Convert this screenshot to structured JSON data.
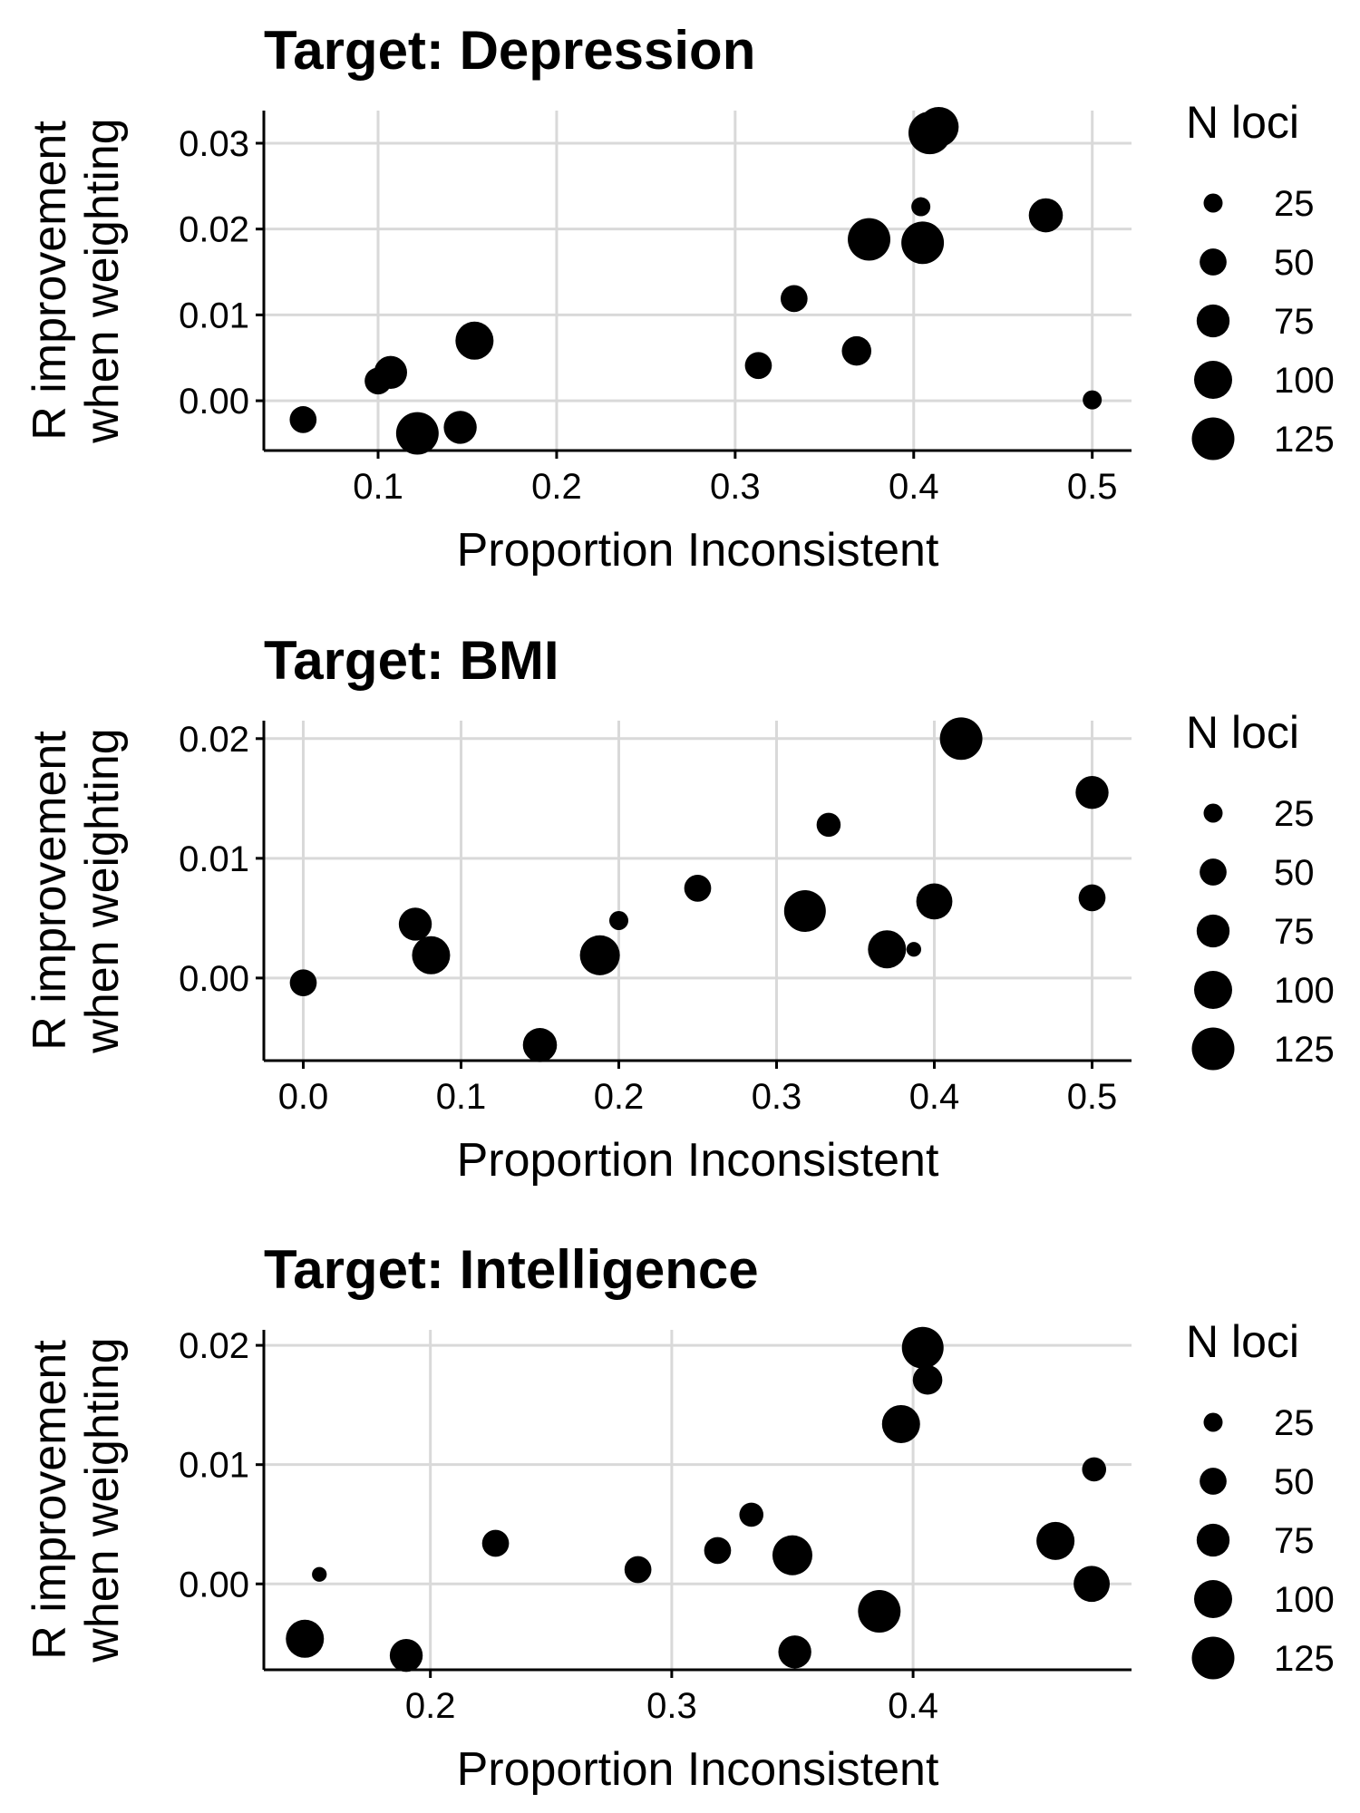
{
  "legend": {
    "title": "N loci",
    "sizes": [
      25,
      50,
      75,
      100,
      125
    ],
    "labels": [
      "25",
      "50",
      "75",
      "100",
      "125"
    ]
  },
  "chart_data": [
    {
      "type": "scatter",
      "title": "Target: Depression",
      "xlabel": "Proportion Inconsistent",
      "ylabel": [
        "R improvement",
        "when weighting"
      ],
      "xlim": [
        0.036,
        0.522
      ],
      "ylim": [
        -0.0058,
        0.0338
      ],
      "xticks": [
        0.1,
        0.2,
        0.3,
        0.4,
        0.5
      ],
      "xtick_labels": [
        "0.1",
        "0.2",
        "0.3",
        "0.4",
        "0.5"
      ],
      "yticks": [
        0.0,
        0.01,
        0.02,
        0.03
      ],
      "ytick_labels": [
        "0.00",
        "0.01",
        "0.02",
        "0.03"
      ],
      "grid": true,
      "legend_position": "right",
      "points": [
        {
          "x": 0.058,
          "y": -0.0022,
          "n": 50
        },
        {
          "x": 0.1,
          "y": 0.0023,
          "n": 50
        },
        {
          "x": 0.107,
          "y": 0.0033,
          "n": 75
        },
        {
          "x": 0.122,
          "y": -0.0038,
          "n": 125
        },
        {
          "x": 0.146,
          "y": -0.0031,
          "n": 75
        },
        {
          "x": 0.154,
          "y": 0.007,
          "n": 100
        },
        {
          "x": 0.313,
          "y": 0.0041,
          "n": 50
        },
        {
          "x": 0.333,
          "y": 0.0119,
          "n": 50
        },
        {
          "x": 0.368,
          "y": 0.0058,
          "n": 60
        },
        {
          "x": 0.375,
          "y": 0.0188,
          "n": 125
        },
        {
          "x": 0.404,
          "y": 0.0226,
          "n": 25
        },
        {
          "x": 0.405,
          "y": 0.0184,
          "n": 125
        },
        {
          "x": 0.409,
          "y": 0.0312,
          "n": 125
        },
        {
          "x": 0.414,
          "y": 0.0319,
          "n": 110
        },
        {
          "x": 0.474,
          "y": 0.0216,
          "n": 80
        },
        {
          "x": 0.5,
          "y": 0.0001,
          "n": 25
        }
      ]
    },
    {
      "type": "scatter",
      "title": "Target: BMI",
      "xlabel": "Proportion Inconsistent",
      "ylabel": [
        "R improvement",
        "when weighting"
      ],
      "xlim": [
        -0.025,
        0.525
      ],
      "ylim": [
        -0.0069,
        0.0215
      ],
      "xticks": [
        0.0,
        0.1,
        0.2,
        0.3,
        0.4,
        0.5
      ],
      "xtick_labels": [
        "0.0",
        "0.1",
        "0.2",
        "0.3",
        "0.4",
        "0.5"
      ],
      "yticks": [
        0.0,
        0.01,
        0.02
      ],
      "ytick_labels": [
        "0.00",
        "0.01",
        "0.02"
      ],
      "grid": true,
      "legend_position": "right",
      "points": [
        {
          "x": 0.0,
          "y": -0.0004,
          "n": 50
        },
        {
          "x": 0.071,
          "y": 0.0045,
          "n": 75
        },
        {
          "x": 0.081,
          "y": 0.0019,
          "n": 100
        },
        {
          "x": 0.15,
          "y": -0.0056,
          "n": 80
        },
        {
          "x": 0.188,
          "y": 0.0019,
          "n": 110
        },
        {
          "x": 0.2,
          "y": 0.0048,
          "n": 25
        },
        {
          "x": 0.25,
          "y": 0.0075,
          "n": 50
        },
        {
          "x": 0.318,
          "y": 0.0056,
          "n": 120
        },
        {
          "x": 0.333,
          "y": 0.0128,
          "n": 40
        },
        {
          "x": 0.37,
          "y": 0.0024,
          "n": 100
        },
        {
          "x": 0.387,
          "y": 0.0024,
          "n": 15
        },
        {
          "x": 0.4,
          "y": 0.0064,
          "n": 90
        },
        {
          "x": 0.417,
          "y": 0.02,
          "n": 125
        },
        {
          "x": 0.5,
          "y": 0.0067,
          "n": 50
        },
        {
          "x": 0.5,
          "y": 0.0155,
          "n": 75
        }
      ]
    },
    {
      "type": "scatter",
      "title": "Target: Intelligence",
      "xlabel": "Proportion Inconsistent",
      "ylabel": [
        "R improvement",
        "when weighting"
      ],
      "xlim": [
        0.131,
        0.4905
      ],
      "ylim": [
        -0.0072,
        0.0213
      ],
      "xticks": [
        0.2,
        0.3,
        0.4
      ],
      "xtick_labels": [
        "0.2",
        "0.3",
        "0.4"
      ],
      "yticks": [
        0.0,
        0.01,
        0.02
      ],
      "ytick_labels": [
        "0.00",
        "0.01",
        "0.02"
      ],
      "grid": true,
      "legend_position": "right",
      "points": [
        {
          "x": 0.148,
          "y": -0.0046,
          "n": 100
        },
        {
          "x": 0.154,
          "y": 0.0008,
          "n": 15
        },
        {
          "x": 0.19,
          "y": -0.006,
          "n": 75
        },
        {
          "x": 0.227,
          "y": 0.0034,
          "n": 50
        },
        {
          "x": 0.286,
          "y": 0.0012,
          "n": 50
        },
        {
          "x": 0.319,
          "y": 0.0028,
          "n": 50
        },
        {
          "x": 0.333,
          "y": 0.0058,
          "n": 40
        },
        {
          "x": 0.35,
          "y": 0.0024,
          "n": 110
        },
        {
          "x": 0.351,
          "y": -0.0057,
          "n": 75
        },
        {
          "x": 0.386,
          "y": -0.0023,
          "n": 125
        },
        {
          "x": 0.395,
          "y": 0.0134,
          "n": 100
        },
        {
          "x": 0.404,
          "y": 0.0198,
          "n": 120
        },
        {
          "x": 0.406,
          "y": 0.0171,
          "n": 60
        },
        {
          "x": 0.459,
          "y": 0.0036,
          "n": 100
        },
        {
          "x": 0.474,
          "y": 0.0,
          "n": 90
        },
        {
          "x": 0.475,
          "y": 0.0096,
          "n": 40
        }
      ]
    }
  ]
}
